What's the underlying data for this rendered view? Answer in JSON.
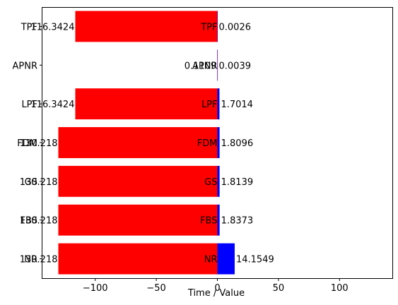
{
  "chart_data": {
    "type": "bar",
    "orientation": "horizontal",
    "categories": [
      "NR",
      "FBS",
      "GS",
      "FDM",
      "LPF",
      "APNR",
      "TPF"
    ],
    "series": [
      {
        "color": "#ff0000",
        "values": [
          -130.218,
          -130.218,
          -130.218,
          -130.218,
          -116.3424,
          -0.1109,
          -116.3424
        ]
      },
      {
        "color": "#0000ff",
        "values": [
          14.1549,
          1.8373,
          1.8139,
          1.8096,
          1.7014,
          0.0039,
          0.0026
        ]
      }
    ],
    "negative_labels": [
      "130.218",
      "130.218",
      "130.218",
      "130.218",
      "116.3424",
      "0.1109",
      "116.3424"
    ],
    "positive_labels": [
      "14.1549",
      "1.8373",
      "1.8139",
      "1.8096",
      "1.7014",
      "0.0039",
      "0.0026"
    ],
    "x_ticks": [
      {
        "value": -100,
        "label": "−100"
      },
      {
        "value": -50,
        "label": "−50"
      },
      {
        "value": 0,
        "label": "0"
      },
      {
        "value": 50,
        "label": "50"
      },
      {
        "value": 100,
        "label": "100"
      }
    ],
    "xlim": [
      -143.24,
      143.24
    ],
    "xlabel": "Time / Value",
    "title": "",
    "ylabel": "",
    "grid": false,
    "legend": "none"
  }
}
